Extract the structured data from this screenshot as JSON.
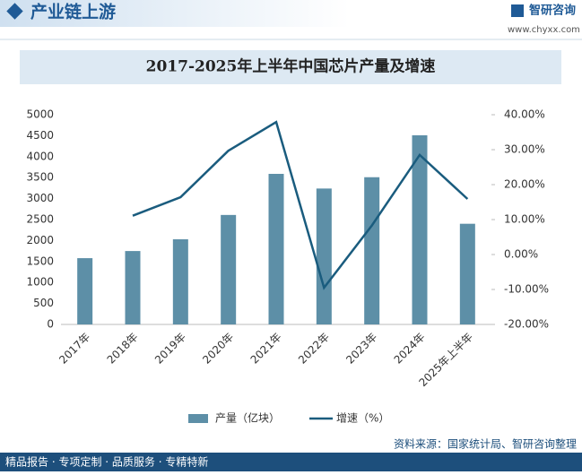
{
  "header": {
    "title": "产业链上游",
    "brand": "智研咨询",
    "url": "www.chyxx.com"
  },
  "chart_data": {
    "type": "bar-line",
    "title": "2017-2025年上半年中国芯片产量及增速",
    "categories": [
      "2017年",
      "2018年",
      "2019年",
      "2020年",
      "2021年",
      "2022年",
      "2023年",
      "2024年",
      "2025年上半年"
    ],
    "series": [
      {
        "name": "产量（亿块）",
        "type": "bar",
        "color": "#5d8fa7",
        "values": [
          1580,
          1750,
          2030,
          2610,
          3590,
          3240,
          3510,
          4510,
          2400
        ]
      },
      {
        "name": "增速（%）",
        "type": "line",
        "axis": "y2",
        "color": "#1a5c7e",
        "values": [
          null,
          11.1,
          16.4,
          29.7,
          37.9,
          -9.5,
          8.3,
          28.5,
          15.9
        ]
      }
    ],
    "ylim": [
      0,
      5000
    ],
    "yticks": [
      0,
      500,
      1000,
      1500,
      2000,
      2500,
      3000,
      3500,
      4000,
      4500,
      5000
    ],
    "y2lim": [
      -20,
      40
    ],
    "y2ticks": [
      {
        "value": -20,
        "label": "-20.00%"
      },
      {
        "value": -10,
        "label": "-10.00%"
      },
      {
        "value": 0,
        "label": "0.00%"
      },
      {
        "value": 10,
        "label": "10.00%"
      },
      {
        "value": 20,
        "label": "20.00%"
      },
      {
        "value": 30,
        "label": "30.00%"
      },
      {
        "value": 40,
        "label": "40.00%"
      }
    ],
    "legend": "bottom"
  },
  "footer": {
    "slogan": "精品报告 · 专项定制 · 品质服务 · 专精特新",
    "source": "资料来源：国家统计局、智研咨询整理"
  }
}
